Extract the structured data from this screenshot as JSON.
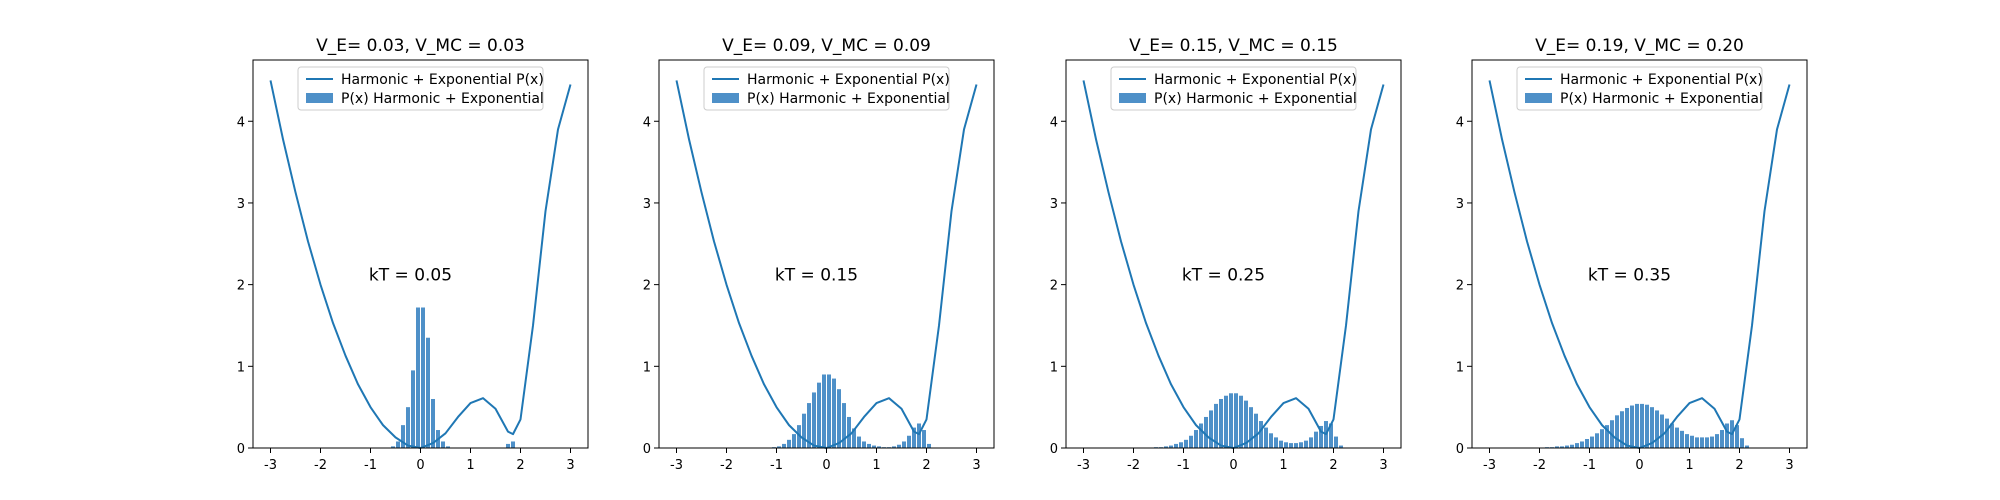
{
  "figure": {
    "background": "#ffffff",
    "curve_color": "#1f77b4",
    "bar_color": "#4e90c8"
  },
  "chart_data": [
    {
      "type": "bar",
      "title": "V_E= 0.03, V_MC = 0.03",
      "annotation": "kT = 0.05",
      "annotation_pos": [
        -0.2,
        2.05
      ],
      "xlim": [
        -3.35,
        3.35
      ],
      "ylim": [
        0,
        4.75
      ],
      "xticks": [
        -3,
        -2,
        -1,
        0,
        1,
        2,
        3
      ],
      "yticks": [
        0,
        1,
        2,
        3,
        4
      ],
      "grid": false,
      "legend": {
        "placement": "top-center",
        "entries": [
          "Harmonic + Exponential P(x)",
          "P(x) Harmonic + Exponential"
        ]
      },
      "series": [
        {
          "name": "Harmonic + Exponential P(x)",
          "kind": "line",
          "x": [
            -3.0,
            -2.75,
            -2.5,
            -2.25,
            -2.0,
            -1.75,
            -1.5,
            -1.25,
            -1.0,
            -0.75,
            -0.5,
            -0.25,
            0.0,
            0.25,
            0.5,
            0.75,
            1.0,
            1.25,
            1.5,
            1.75,
            1.85,
            2.0,
            2.25,
            2.5,
            2.75,
            3.0
          ],
          "y": [
            4.5,
            3.78,
            3.13,
            2.53,
            2.0,
            1.53,
            1.13,
            0.78,
            0.5,
            0.28,
            0.13,
            0.03,
            0.0,
            0.06,
            0.18,
            0.38,
            0.55,
            0.61,
            0.48,
            0.2,
            0.17,
            0.35,
            1.5,
            2.9,
            3.9,
            4.45
          ]
        },
        {
          "name": "P(x) Harmonic + Exponential",
          "kind": "bar",
          "bin_width": 0.1,
          "x": [
            -0.55,
            -0.45,
            -0.35,
            -0.25,
            -0.15,
            -0.05,
            0.05,
            0.15,
            0.25,
            0.35,
            0.45,
            0.55,
            1.75,
            1.85
          ],
          "y": [
            0.02,
            0.08,
            0.28,
            0.5,
            0.95,
            1.72,
            1.72,
            1.35,
            0.6,
            0.22,
            0.08,
            0.02,
            0.05,
            0.08
          ]
        }
      ]
    },
    {
      "type": "bar",
      "title": "V_E= 0.09, V_MC = 0.09",
      "annotation": "kT = 0.15",
      "annotation_pos": [
        -0.2,
        2.05
      ],
      "xlim": [
        -3.35,
        3.35
      ],
      "ylim": [
        0,
        4.75
      ],
      "xticks": [
        -3,
        -2,
        -1,
        0,
        1,
        2,
        3
      ],
      "yticks": [
        0,
        1,
        2,
        3,
        4
      ],
      "grid": false,
      "legend": {
        "placement": "top-center",
        "entries": [
          "Harmonic + Exponential P(x)",
          "P(x) Harmonic + Exponential"
        ]
      },
      "series": [
        {
          "name": "Harmonic + Exponential P(x)",
          "kind": "line",
          "x": [
            -3.0,
            -2.75,
            -2.5,
            -2.25,
            -2.0,
            -1.75,
            -1.5,
            -1.25,
            -1.0,
            -0.75,
            -0.5,
            -0.25,
            0.0,
            0.25,
            0.5,
            0.75,
            1.0,
            1.25,
            1.5,
            1.75,
            1.85,
            2.0,
            2.25,
            2.5,
            2.75,
            3.0
          ],
          "y": [
            4.5,
            3.78,
            3.13,
            2.53,
            2.0,
            1.53,
            1.13,
            0.78,
            0.5,
            0.28,
            0.13,
            0.03,
            0.0,
            0.06,
            0.18,
            0.38,
            0.55,
            0.61,
            0.48,
            0.2,
            0.17,
            0.35,
            1.5,
            2.9,
            3.9,
            4.45
          ]
        },
        {
          "name": "P(x) Harmonic + Exponential",
          "kind": "bar",
          "bin_width": 0.1,
          "x": [
            -1.05,
            -0.95,
            -0.85,
            -0.75,
            -0.65,
            -0.55,
            -0.45,
            -0.35,
            -0.25,
            -0.15,
            -0.05,
            0.05,
            0.15,
            0.25,
            0.35,
            0.45,
            0.55,
            0.65,
            0.75,
            0.85,
            0.95,
            1.05,
            1.15,
            1.25,
            1.35,
            1.45,
            1.55,
            1.65,
            1.75,
            1.85,
            1.95,
            2.05
          ],
          "y": [
            0.01,
            0.02,
            0.05,
            0.1,
            0.17,
            0.28,
            0.42,
            0.55,
            0.68,
            0.8,
            0.9,
            0.9,
            0.85,
            0.72,
            0.55,
            0.38,
            0.24,
            0.14,
            0.08,
            0.05,
            0.03,
            0.02,
            0.01,
            0.01,
            0.02,
            0.04,
            0.08,
            0.15,
            0.25,
            0.3,
            0.22,
            0.05
          ]
        }
      ]
    },
    {
      "type": "bar",
      "title": "V_E= 0.15, V_MC = 0.15",
      "annotation": "kT = 0.25",
      "annotation_pos": [
        -0.2,
        2.05
      ],
      "xlim": [
        -3.35,
        3.35
      ],
      "ylim": [
        0,
        4.75
      ],
      "xticks": [
        -3,
        -2,
        -1,
        0,
        1,
        2,
        3
      ],
      "yticks": [
        0,
        1,
        2,
        3,
        4
      ],
      "grid": false,
      "legend": {
        "placement": "top-center",
        "entries": [
          "Harmonic + Exponential P(x)",
          "P(x) Harmonic + Exponential"
        ]
      },
      "series": [
        {
          "name": "Harmonic + Exponential P(x)",
          "kind": "line",
          "x": [
            -3.0,
            -2.75,
            -2.5,
            -2.25,
            -2.0,
            -1.75,
            -1.5,
            -1.25,
            -1.0,
            -0.75,
            -0.5,
            -0.25,
            0.0,
            0.25,
            0.5,
            0.75,
            1.0,
            1.25,
            1.5,
            1.75,
            1.85,
            2.0,
            2.25,
            2.5,
            2.75,
            3.0
          ],
          "y": [
            4.5,
            3.78,
            3.13,
            2.53,
            2.0,
            1.53,
            1.13,
            0.78,
            0.5,
            0.28,
            0.13,
            0.03,
            0.0,
            0.06,
            0.18,
            0.38,
            0.55,
            0.61,
            0.48,
            0.2,
            0.17,
            0.35,
            1.5,
            2.9,
            3.9,
            4.45
          ]
        },
        {
          "name": "P(x) Harmonic + Exponential",
          "kind": "bar",
          "bin_width": 0.1,
          "x": [
            -1.55,
            -1.45,
            -1.35,
            -1.25,
            -1.15,
            -1.05,
            -0.95,
            -0.85,
            -0.75,
            -0.65,
            -0.55,
            -0.45,
            -0.35,
            -0.25,
            -0.15,
            -0.05,
            0.05,
            0.15,
            0.25,
            0.35,
            0.45,
            0.55,
            0.65,
            0.75,
            0.85,
            0.95,
            1.05,
            1.15,
            1.25,
            1.35,
            1.45,
            1.55,
            1.65,
            1.75,
            1.85,
            1.95,
            2.05,
            2.15
          ],
          "y": [
            0.01,
            0.01,
            0.02,
            0.03,
            0.05,
            0.07,
            0.1,
            0.15,
            0.22,
            0.3,
            0.38,
            0.46,
            0.54,
            0.6,
            0.64,
            0.67,
            0.67,
            0.64,
            0.58,
            0.5,
            0.42,
            0.33,
            0.25,
            0.18,
            0.13,
            0.09,
            0.07,
            0.06,
            0.06,
            0.07,
            0.09,
            0.13,
            0.2,
            0.27,
            0.33,
            0.3,
            0.14,
            0.03
          ]
        }
      ]
    },
    {
      "type": "bar",
      "title": "V_E= 0.19, V_MC = 0.20",
      "annotation": "kT = 0.35",
      "annotation_pos": [
        -0.2,
        2.05
      ],
      "xlim": [
        -3.35,
        3.35
      ],
      "ylim": [
        0,
        4.75
      ],
      "xticks": [
        -3,
        -2,
        -1,
        0,
        1,
        2,
        3
      ],
      "yticks": [
        0,
        1,
        2,
        3,
        4
      ],
      "grid": false,
      "legend": {
        "placement": "top-center",
        "entries": [
          "Harmonic + Exponential P(x)",
          "P(x) Harmonic + Exponential"
        ]
      },
      "series": [
        {
          "name": "Harmonic + Exponential P(x)",
          "kind": "line",
          "x": [
            -3.0,
            -2.75,
            -2.5,
            -2.25,
            -2.0,
            -1.75,
            -1.5,
            -1.25,
            -1.0,
            -0.75,
            -0.5,
            -0.25,
            0.0,
            0.25,
            0.5,
            0.75,
            1.0,
            1.25,
            1.5,
            1.75,
            1.85,
            2.0,
            2.25,
            2.5,
            2.75,
            3.0
          ],
          "y": [
            4.5,
            3.78,
            3.13,
            2.53,
            2.0,
            1.53,
            1.13,
            0.78,
            0.5,
            0.28,
            0.13,
            0.03,
            0.0,
            0.06,
            0.18,
            0.38,
            0.55,
            0.61,
            0.48,
            0.2,
            0.17,
            0.35,
            1.5,
            2.9,
            3.9,
            4.45
          ]
        },
        {
          "name": "P(x) Harmonic + Exponential",
          "kind": "bar",
          "bin_width": 0.1,
          "x": [
            -1.85,
            -1.75,
            -1.65,
            -1.55,
            -1.45,
            -1.35,
            -1.25,
            -1.15,
            -1.05,
            -0.95,
            -0.85,
            -0.75,
            -0.65,
            -0.55,
            -0.45,
            -0.35,
            -0.25,
            -0.15,
            -0.05,
            0.05,
            0.15,
            0.25,
            0.35,
            0.45,
            0.55,
            0.65,
            0.75,
            0.85,
            0.95,
            1.05,
            1.15,
            1.25,
            1.35,
            1.45,
            1.55,
            1.65,
            1.75,
            1.85,
            1.95,
            2.05,
            2.15
          ],
          "y": [
            0.01,
            0.01,
            0.02,
            0.02,
            0.03,
            0.04,
            0.06,
            0.08,
            0.11,
            0.14,
            0.18,
            0.23,
            0.28,
            0.34,
            0.4,
            0.45,
            0.49,
            0.52,
            0.54,
            0.54,
            0.53,
            0.5,
            0.46,
            0.41,
            0.36,
            0.3,
            0.25,
            0.21,
            0.17,
            0.15,
            0.13,
            0.13,
            0.13,
            0.14,
            0.17,
            0.22,
            0.3,
            0.34,
            0.28,
            0.12,
            0.03
          ]
        }
      ]
    }
  ]
}
